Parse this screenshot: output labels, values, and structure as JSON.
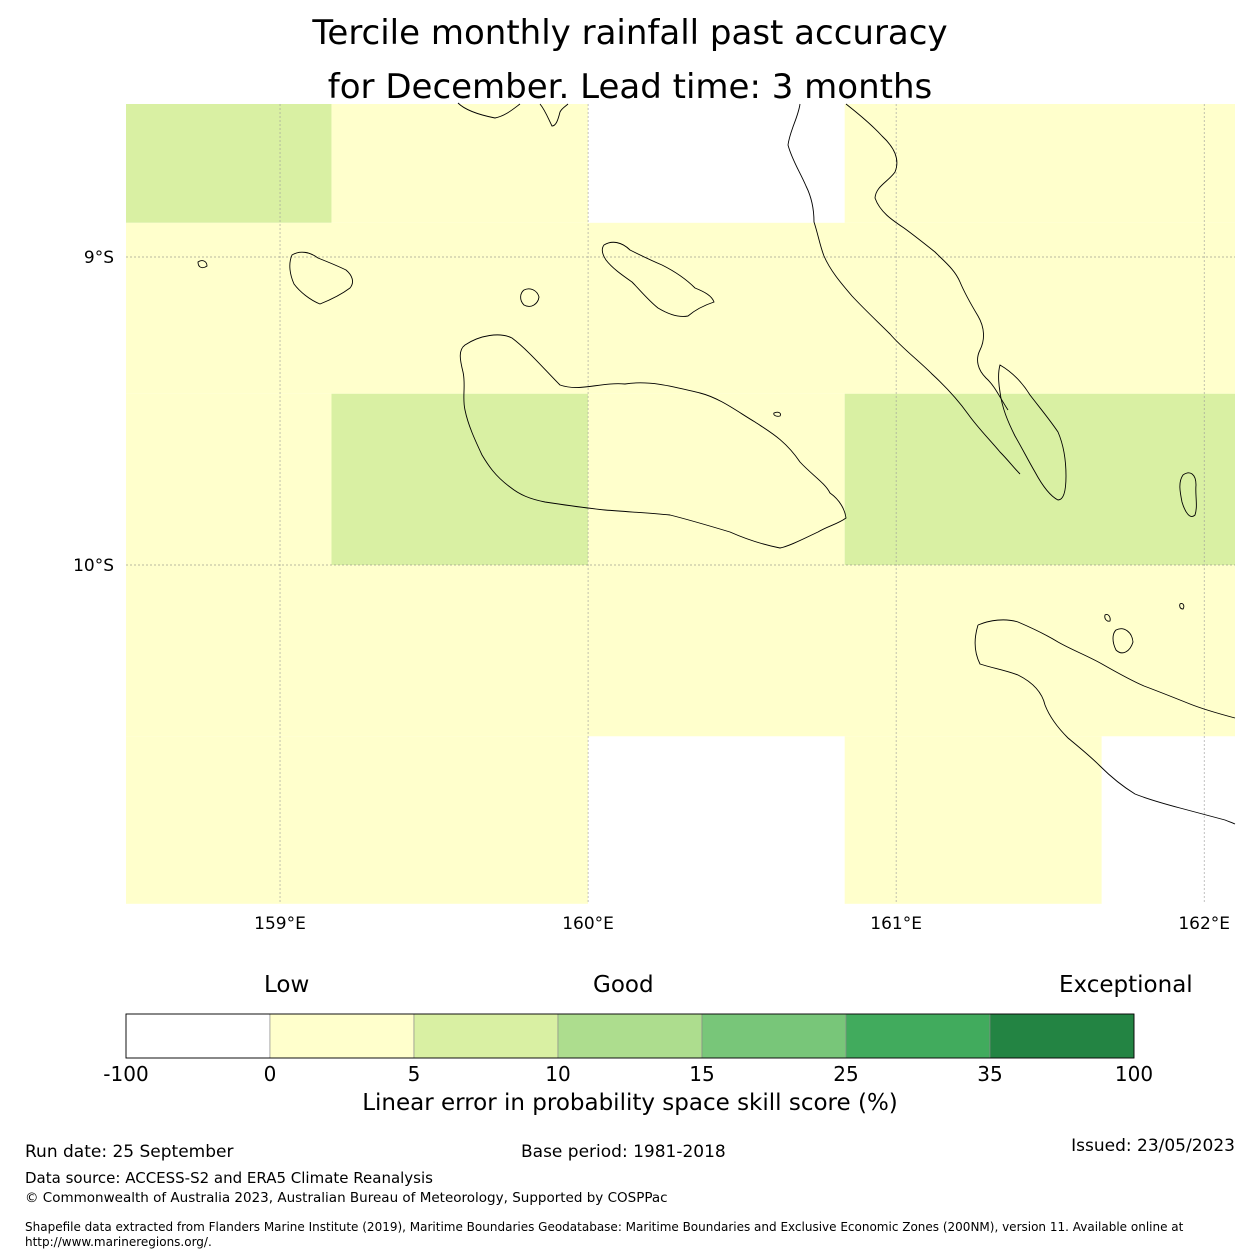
{
  "title": {
    "line1": "Tercile monthly rainfall past accuracy",
    "line2": "for December. Lead time: 3 months"
  },
  "map": {
    "lat_labels": [
      "9°S",
      "10°S"
    ],
    "lon_labels": [
      "159°E",
      "160°E",
      "161°E",
      "162°E"
    ],
    "extent": {
      "lon_min": 158.5,
      "lon_max": 162.1,
      "lat_min": -11.1,
      "lat_max": -8.5
    },
    "grid_lons": [
      159,
      160,
      161,
      162
    ],
    "grid_lats": [
      -9,
      -10
    ],
    "cells": [
      {
        "lon0": 158.5,
        "lon1": 159.167,
        "lat0": -8.5,
        "lat1": -8.889,
        "category": "5-10"
      },
      {
        "lon0": 159.167,
        "lon1": 160.0,
        "lat0": -8.5,
        "lat1": -8.889,
        "category": "0-5"
      },
      {
        "lon0": 160.833,
        "lon1": 162.1,
        "lat0": -8.5,
        "lat1": -8.889,
        "category": "0-5"
      },
      {
        "lon0": 158.5,
        "lon1": 162.1,
        "lat0": -8.889,
        "lat1": -9.444,
        "category": "0-5"
      },
      {
        "lon0": 158.5,
        "lon1": 159.167,
        "lat0": -9.444,
        "lat1": -10.0,
        "category": "0-5"
      },
      {
        "lon0": 159.167,
        "lon1": 160.0,
        "lat0": -9.444,
        "lat1": -10.0,
        "category": "5-10"
      },
      {
        "lon0": 160.0,
        "lon1": 160.833,
        "lat0": -9.444,
        "lat1": -10.0,
        "category": "0-5"
      },
      {
        "lon0": 160.833,
        "lon1": 162.1,
        "lat0": -9.444,
        "lat1": -10.0,
        "category": "5-10"
      },
      {
        "lon0": 158.5,
        "lon1": 162.1,
        "lat0": -10.0,
        "lat1": -10.556,
        "category": "0-5"
      },
      {
        "lon0": 158.5,
        "lon1": 160.0,
        "lat0": -10.556,
        "lat1": -11.1,
        "category": "0-5"
      },
      {
        "lon0": 160.833,
        "lon1": 161.667,
        "lat0": -10.556,
        "lat1": -11.1,
        "category": "0-5"
      }
    ]
  },
  "legend": {
    "categories": [
      "Low",
      "Good",
      "Exceptional"
    ],
    "bins": [
      {
        "range": "-100-0",
        "color": "#ffffff"
      },
      {
        "range": "0-5",
        "color": "#ffffcc"
      },
      {
        "range": "5-10",
        "color": "#d9f0a3"
      },
      {
        "range": "10-15",
        "color": "#addd8e"
      },
      {
        "range": "15-25",
        "color": "#78c679"
      },
      {
        "range": "25-35",
        "color": "#41ab5d"
      },
      {
        "range": "35-100",
        "color": "#238443"
      }
    ],
    "ticks": [
      "-100",
      "0",
      "5",
      "10",
      "15",
      "25",
      "35",
      "100"
    ],
    "title": "Linear error in probability space skill score (%)"
  },
  "footer": {
    "run_date": "Run date: 25 September",
    "base_period": "Base period: 1981-2018",
    "issued": "Issued: 23/05/2023",
    "data_source": "Data source: ACCESS-S2 and ERA5 Climate Reanalysis",
    "copyright": "© Commonwealth of Australia 2023, Australian Bureau of Meteorology, Supported by COSPPac",
    "shapefile_line1": "Shapefile data extracted from Flanders Marine Institute (2019), Maritime Boundaries Geodatabase: Maritime Boundaries and Exclusive Economic Zones (200NM), version 11. Available online at",
    "shapefile_line2": "http://www.marineregions.org/."
  }
}
